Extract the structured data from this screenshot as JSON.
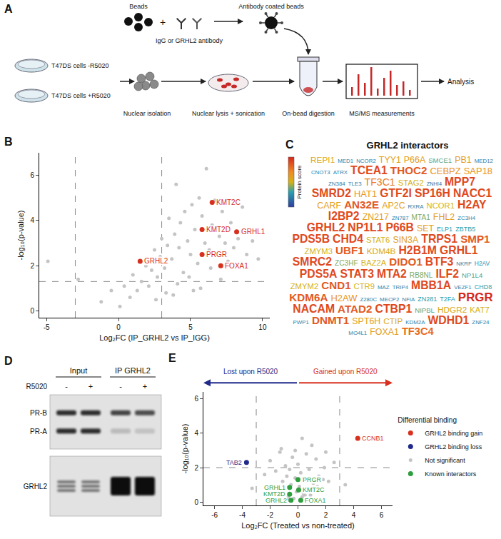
{
  "diagram": {
    "panel_label": "A",
    "beads": "Beads",
    "plus": "+",
    "antibody": "IgG or GRHL2 antibody",
    "coated_beads": "Antibody coated beads",
    "cells": [
      "T47DS cells -R5020",
      "T47DS cells +R5020"
    ],
    "steps": [
      "Nuclear isolation",
      "Nuclear lysis + sonication",
      "On-bead digestion",
      "MS/MS measurements",
      "Analysis"
    ]
  },
  "chart_data": [
    {
      "panel_label": "B",
      "type": "scatter",
      "x_label": "Log₂FC (IP_GRHL2 vs IP_IGG)",
      "y_label": "-log₁₀(p-value)",
      "xlim": [
        -5.5,
        10.5
      ],
      "ylim": [
        -0.3,
        7
      ],
      "xticks": [
        -5,
        0,
        5,
        10
      ],
      "yticks": [
        0,
        2,
        4,
        6
      ],
      "grid": false,
      "threshold_lines": {
        "x": [
          -3,
          3
        ],
        "y": [
          1.3
        ]
      },
      "series": [
        {
          "color": "#c4c4c4",
          "x": [
            -4.9,
            -2.8,
            -1.2,
            -0.5,
            0.1,
            0.4,
            0.8,
            1.0,
            1.3,
            1.6,
            1.9,
            2.1,
            2.3,
            2.5,
            2.7,
            2.9,
            3.0,
            3.2,
            3.4,
            3.5,
            3.7,
            3.9,
            4.0,
            4.2,
            4.3,
            4.5,
            4.6,
            4.8,
            5.0,
            5.1,
            5.3,
            5.5,
            5.6,
            5.8,
            6.0,
            6.1,
            6.3,
            6.5,
            6.7,
            6.9,
            7.0,
            7.2,
            7.4,
            7.6,
            7.8,
            8.0,
            8.3,
            8.6,
            8.9,
            9.3,
            9.7,
            3.3,
            4.1,
            4.9,
            5.7,
            6.4,
            7.1,
            2.6,
            3.8,
            5.2
          ],
          "y": [
            2.2,
            1.4,
            0.4,
            0.9,
            0.2,
            1.1,
            0.6,
            1.6,
            0.9,
            1.3,
            2.0,
            1.1,
            1.8,
            2.7,
            1.5,
            2.4,
            3.2,
            1.9,
            2.9,
            4.1,
            2.3,
            3.4,
            5.6,
            2.8,
            3.9,
            1.7,
            4.4,
            3.1,
            2.5,
            4.7,
            3.6,
            2.1,
            5.0,
            4.2,
            3.0,
            6.3,
            2.7,
            3.8,
            4.9,
            2.6,
            3.3,
            4.4,
            3.0,
            2.2,
            3.9,
            2.8,
            3.2,
            4.6,
            2.5,
            3.1,
            2.3,
            0.8,
            1.2,
            1.5,
            1.0,
            1.9,
            1.4,
            0.5,
            0.7,
            0.9
          ]
        },
        {
          "color": "#d7301f",
          "x": [
            6.5,
            5.8,
            8.2,
            1.5,
            5.8,
            7.1
          ],
          "y": [
            4.8,
            3.6,
            3.5,
            2.2,
            2.5,
            2.0
          ],
          "labels": [
            "KMT2C",
            "KMT2D",
            "GRHL1",
            "GRHL2",
            "PRGR",
            "FOXA1"
          ]
        }
      ]
    },
    {
      "panel_label": "E",
      "type": "scatter",
      "x_label": "Log₂FC (Treated vs non-treated)",
      "y_label": "-log₁₀(p-value)",
      "xlim": [
        -6.8,
        6.8
      ],
      "ylim": [
        -0.2,
        6.4
      ],
      "xticks": [
        -6,
        -4,
        -2,
        0,
        2,
        4,
        6
      ],
      "yticks": [
        0,
        2,
        4,
        6
      ],
      "grid": false,
      "threshold_lines": {
        "x": [
          -3,
          3
        ],
        "y": [
          2
        ]
      },
      "arrow_labels": {
        "left": {
          "text": "Lost upon R5020",
          "color": "#1f2a8a"
        },
        "right": {
          "text": "Gained upon R5020",
          "color": "#d7301f"
        }
      },
      "legend": "right",
      "legend_title": "Differential binding",
      "series": [
        {
          "name": "GRHL2 binding gain",
          "color": "#d7301f",
          "x": [
            4.3
          ],
          "y": [
            3.7
          ],
          "labels": [
            "CCNB1"
          ]
        },
        {
          "name": "GRHL2 binding loss",
          "color": "#1f2a8a",
          "x": [
            -3.7
          ],
          "y": [
            2.3
          ],
          "labels": [
            "TAB2"
          ]
        },
        {
          "name": "Not significant",
          "color": "#c4c4c4",
          "x": [
            -3.3,
            -2.4,
            -2.0,
            -1.8,
            -1.6,
            -1.4,
            -1.3,
            -1.1,
            -1.0,
            -0.9,
            -0.8,
            -0.7,
            -0.6,
            -0.5,
            -0.4,
            -0.3,
            -0.2,
            -0.1,
            0.0,
            0.1,
            0.2,
            0.3,
            0.4,
            0.5,
            0.6,
            0.7,
            0.8,
            0.9,
            1.0,
            1.1,
            1.2,
            1.3,
            1.5,
            1.7,
            1.9,
            2.2,
            2.6,
            3.4,
            -1.2,
            -0.6,
            0.3,
            0.9,
            1.4,
            -0.2,
            0.5,
            1.8,
            -2.2,
            2.0,
            0.7,
            -0.8
          ],
          "y": [
            0.8,
            1.6,
            2.4,
            0.9,
            1.8,
            0.5,
            2.9,
            1.2,
            0.4,
            2.1,
            1.5,
            0.3,
            1.9,
            1.0,
            2.6,
            0.2,
            1.4,
            0.6,
            2.2,
            0.9,
            1.7,
            3.7,
            0.5,
            1.3,
            2.8,
            0.8,
            1.9,
            0.4,
            3.3,
            1.1,
            0.7,
            2.5,
            1.5,
            0.6,
            2.0,
            1.2,
            2.3,
            1.0,
            3.1,
            0.1,
            0.3,
            0.2,
            0.9,
            3.0,
            0.4,
            1.3,
            0.7,
            2.9,
            0.6,
            0.2
          ]
        },
        {
          "name": "Known interactors",
          "color": "#2e9e3e",
          "x": [
            0.0,
            -0.6,
            0.05,
            -0.6,
            -0.5,
            0.2
          ],
          "y": [
            1.3,
            0.85,
            0.7,
            0.45,
            0.1,
            0.1
          ],
          "labels": [
            "PRGR",
            "GRHL1",
            "KMT2C",
            "KMT2D",
            "GRHL2",
            "FOXA1"
          ]
        }
      ]
    }
  ],
  "word_cloud": {
    "panel_label": "C",
    "title": "GRHL2 interactors",
    "colorbar": {
      "label": "Protein score",
      "range": [
        0,
        1
      ]
    },
    "words": [
      {
        "text": "REPI1",
        "score": 0.55
      },
      {
        "text": "MED1",
        "score": 0.2
      },
      {
        "text": "NCOR2",
        "score": 0.2
      },
      {
        "text": "TYY1",
        "score": 0.6
      },
      {
        "text": "P66A",
        "score": 0.6
      },
      {
        "text": "SMCE1",
        "score": 0.35
      },
      {
        "text": "PB1",
        "score": 0.6
      },
      {
        "text": "MED12",
        "score": 0.2
      },
      {
        "text": "CNOT3",
        "score": 0.2
      },
      {
        "text": "ATRX",
        "score": 0.2
      },
      {
        "text": "TCEA1",
        "score": 0.9
      },
      {
        "text": "THOC2",
        "score": 0.85
      },
      {
        "text": "CEBPZ",
        "score": 0.65
      },
      {
        "text": "SAP18",
        "score": 0.65
      },
      {
        "text": "ZN384",
        "score": 0.2
      },
      {
        "text": "TLE3",
        "score": 0.2
      },
      {
        "text": "TF3C1",
        "score": 0.75
      },
      {
        "text": "STAG2",
        "score": 0.5
      },
      {
        "text": "ZNHI4",
        "score": 0.15
      },
      {
        "text": "MPP7",
        "score": 0.9
      },
      {
        "text": "SMRD2",
        "score": 0.9
      },
      {
        "text": "HAT1",
        "score": 0.65
      },
      {
        "text": "GTF2I",
        "score": 0.9
      },
      {
        "text": "SP16H",
        "score": 0.9
      },
      {
        "text": "NACC1",
        "score": 0.9
      },
      {
        "text": "CARF",
        "score": 0.6
      },
      {
        "text": "AN32E",
        "score": 0.85
      },
      {
        "text": "AP2C",
        "score": 0.6
      },
      {
        "text": "RXRA",
        "score": 0.2
      },
      {
        "text": "NCOR1",
        "score": 0.5
      },
      {
        "text": "H2AY",
        "score": 0.9
      },
      {
        "text": "I2BP2",
        "score": 0.9
      },
      {
        "text": "ZN217",
        "score": 0.6
      },
      {
        "text": "ZN787",
        "score": 0.2
      },
      {
        "text": "MTA1",
        "score": 0.4
      },
      {
        "text": "FHL2",
        "score": 0.6
      },
      {
        "text": "ZC3H4",
        "score": 0.2
      },
      {
        "text": "GRHL2",
        "score": 0.9
      },
      {
        "text": "NP1L1",
        "score": 0.9
      },
      {
        "text": "P66B",
        "score": 0.9
      },
      {
        "text": "SET",
        "score": 0.6
      },
      {
        "text": "ELP1",
        "score": 0.3
      },
      {
        "text": "ZBTB5",
        "score": 0.3
      },
      {
        "text": "PDS5B",
        "score": 0.9
      },
      {
        "text": "CHD4",
        "score": 0.9
      },
      {
        "text": "STAT6",
        "score": 0.5
      },
      {
        "text": "SIN3A",
        "score": 0.6
      },
      {
        "text": "TRPS1",
        "score": 0.9
      },
      {
        "text": "SMP1",
        "score": 0.85
      },
      {
        "text": "ZMYM3",
        "score": 0.5
      },
      {
        "text": "UBF1",
        "score": 0.85
      },
      {
        "text": "KDM4B",
        "score": 0.55
      },
      {
        "text": "H2B1M",
        "score": 0.9
      },
      {
        "text": "GRHL1",
        "score": 0.9
      },
      {
        "text": "SMRC2",
        "score": 0.9
      },
      {
        "text": "ZC3HF",
        "score": 0.4
      },
      {
        "text": "BAZ2A",
        "score": 0.5
      },
      {
        "text": "DIDO1",
        "score": 0.85
      },
      {
        "text": "BTF3",
        "score": 0.9
      },
      {
        "text": "NKRF",
        "score": 0.2
      },
      {
        "text": "H2AV",
        "score": 0.25
      },
      {
        "text": "PDS5A",
        "score": 0.9
      },
      {
        "text": "STAT3",
        "score": 0.9
      },
      {
        "text": "MTA2",
        "score": 0.9
      },
      {
        "text": "RB8NL",
        "score": 0.4
      },
      {
        "text": "ILF2",
        "score": 0.9
      },
      {
        "text": "NP1L4",
        "score": 0.35
      },
      {
        "text": "ZMYM2",
        "score": 0.5
      },
      {
        "text": "CND1",
        "score": 0.85
      },
      {
        "text": "CTR9",
        "score": 0.5
      },
      {
        "text": "MAZ",
        "score": 0.2
      },
      {
        "text": "TRIP4",
        "score": 0.2
      },
      {
        "text": "MBB1A",
        "score": 0.9
      },
      {
        "text": "VEZF1",
        "score": 0.2
      },
      {
        "text": "CHD8",
        "score": 0.3
      },
      {
        "text": "KDM6A",
        "score": 0.85
      },
      {
        "text": "H2AW",
        "score": 0.65
      },
      {
        "text": "Z280C",
        "score": 0.2
      },
      {
        "text": "MECP2",
        "score": 0.2
      },
      {
        "text": "NFIA",
        "score": 0.2
      },
      {
        "text": "ZN281",
        "score": 0.3
      },
      {
        "text": "T2FA",
        "score": 0.3
      },
      {
        "text": "PRGR",
        "score": 1.0
      },
      {
        "text": "NACAM",
        "score": 0.9
      },
      {
        "text": "ATAD2",
        "score": 0.85
      },
      {
        "text": "CTBP1",
        "score": 0.9
      },
      {
        "text": "NIPBL",
        "score": 0.35
      },
      {
        "text": "HDGR2",
        "score": 0.55
      },
      {
        "text": "KAT7",
        "score": 0.5
      },
      {
        "text": "PWP1",
        "score": 0.2
      },
      {
        "text": "DNMT1",
        "score": 0.85
      },
      {
        "text": "SPT6H",
        "score": 0.6
      },
      {
        "text": "CTIP",
        "score": 0.55
      },
      {
        "text": "KDM2A",
        "score": 0.2
      },
      {
        "text": "WDHD1",
        "score": 0.9
      },
      {
        "text": "ZNF24",
        "score": 0.2
      },
      {
        "text": "MO4L1",
        "score": 0.2
      },
      {
        "text": "FOXA1",
        "score": 0.6
      },
      {
        "text": "TF3C4",
        "score": 0.8
      }
    ]
  },
  "western_blot": {
    "panel_label": "D",
    "lane_groups": [
      "Input",
      "IP GRHL2"
    ],
    "treatment_label": "R5020",
    "lane_treatment": [
      "-",
      "+",
      "-",
      "+"
    ],
    "blots": [
      [
        "PR-B",
        "PR-A"
      ],
      [
        "GRHL2"
      ]
    ]
  }
}
